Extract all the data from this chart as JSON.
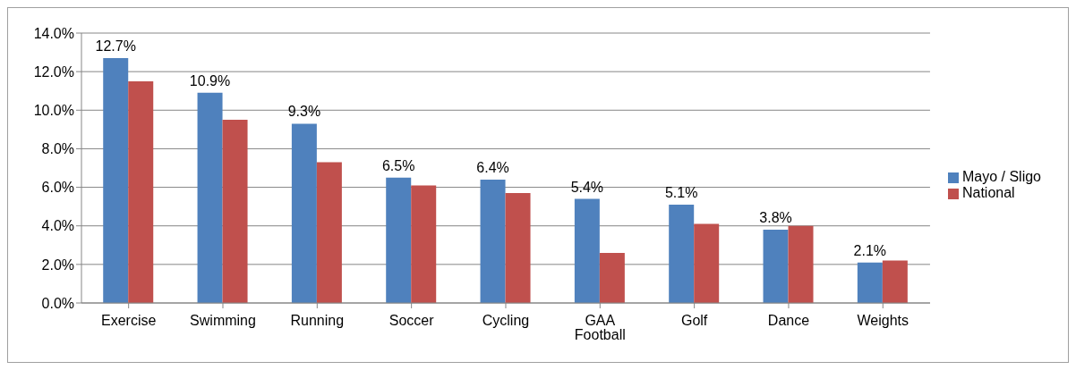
{
  "chart_data": {
    "type": "bar",
    "categories": [
      "Exercise",
      "Swimming",
      "Running",
      "Soccer",
      "Cycling",
      "GAA Football",
      "Golf",
      "Dance",
      "Weights"
    ],
    "series": [
      {
        "name": "Mayo / Sligo",
        "color": "#4f81bd",
        "values": [
          12.7,
          10.9,
          9.3,
          6.5,
          6.4,
          5.4,
          5.1,
          3.8,
          2.1
        ],
        "value_labels": [
          "12.7%",
          "10.9%",
          "9.3%",
          "6.5%",
          "6.4%",
          "5.4%",
          "5.1%",
          "3.8%",
          "2.1%"
        ]
      },
      {
        "name": "National",
        "color": "#c0504d",
        "values": [
          11.5,
          9.5,
          7.3,
          6.1,
          5.7,
          2.6,
          4.1,
          4.0,
          2.2
        ]
      }
    ],
    "ylim": [
      0,
      14
    ],
    "yticks": [
      {
        "value": 0,
        "label": "0.0%"
      },
      {
        "value": 2,
        "label": "2.0%"
      },
      {
        "value": 4,
        "label": "4.0%"
      },
      {
        "value": 6,
        "label": "6.0%"
      },
      {
        "value": 8,
        "label": "8.0%"
      },
      {
        "value": 10,
        "label": "10.0%"
      },
      {
        "value": 12,
        "label": "12.0%"
      },
      {
        "value": 14,
        "label": "14.0%"
      }
    ],
    "grid": "y",
    "legend": "right"
  }
}
